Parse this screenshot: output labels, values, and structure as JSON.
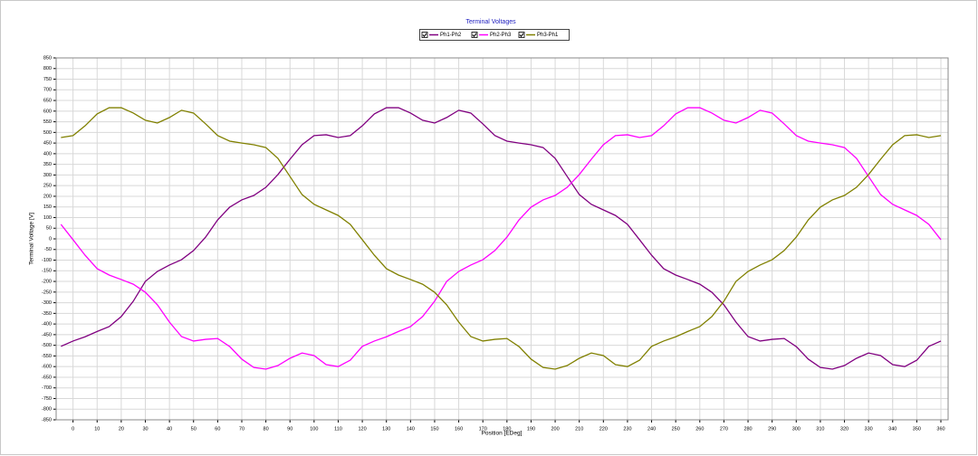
{
  "chart_data": {
    "type": "line",
    "title": "Terminal Voltages",
    "x_label": "Position [EDeg]",
    "y_label": "Terminal Voltage [V]",
    "x": [
      -5,
      0,
      5,
      10,
      15,
      20,
      25,
      30,
      35,
      40,
      45,
      50,
      55,
      60,
      65,
      70,
      75,
      80,
      85,
      90,
      95,
      100,
      105,
      110,
      115,
      120,
      125,
      130,
      135,
      140,
      145,
      150,
      155,
      160,
      165,
      170,
      175,
      180,
      185,
      190,
      195,
      200,
      205,
      210,
      215,
      220,
      225,
      230,
      235,
      240,
      245,
      250,
      255,
      260,
      265,
      270,
      275,
      280,
      285,
      290,
      295,
      300,
      305,
      310,
      315,
      320,
      325,
      330,
      335,
      340,
      345,
      350,
      355,
      360
    ],
    "series": [
      {
        "name": "Ph1-Ph2",
        "color": "#800080",
        "values": [
          -505,
          -480,
          -460,
          -435,
          -412,
          -365,
          -293,
          -200,
          -153,
          -123,
          -98,
          -55,
          8,
          89,
          149,
          183,
          204,
          242,
          302,
          374,
          442,
          485,
          489,
          476,
          485,
          531,
          587,
          616,
          616,
          591,
          557,
          544,
          570,
          604,
          591,
          540,
          485,
          459,
          450,
          442,
          429,
          378,
          293,
          208,
          162,
          136,
          110,
          68,
          -4,
          -77,
          -140,
          -170,
          -191,
          -213,
          -251,
          -310,
          -391,
          -459,
          -480,
          -472,
          -468,
          -506,
          -565,
          -604,
          -612,
          -595,
          -561,
          -536,
          -548,
          -591,
          -600,
          -570,
          -505,
          -480
        ]
      },
      {
        "name": "Ph2-Ph3",
        "color": "#ff00ff",
        "values": [
          68,
          -4,
          -77,
          -140,
          -170,
          -191,
          -213,
          -251,
          -310,
          -391,
          -459,
          -480,
          -472,
          -468,
          -506,
          -565,
          -604,
          -612,
          -595,
          -561,
          -536,
          -548,
          -591,
          -600,
          -570,
          -505,
          -480,
          -460,
          -435,
          -412,
          -365,
          -293,
          -200,
          -153,
          -123,
          -98,
          -55,
          8,
          89,
          149,
          183,
          204,
          242,
          302,
          374,
          442,
          485,
          489,
          476,
          485,
          531,
          587,
          616,
          616,
          591,
          557,
          544,
          570,
          604,
          591,
          540,
          485,
          459,
          450,
          442,
          429,
          378,
          293,
          208,
          162,
          136,
          110,
          68,
          -4
        ]
      },
      {
        "name": "Ph3-Ph1",
        "color": "#808000",
        "values": [
          476,
          485,
          531,
          587,
          616,
          616,
          591,
          557,
          544,
          570,
          604,
          591,
          540,
          485,
          459,
          450,
          442,
          429,
          378,
          293,
          208,
          162,
          136,
          110,
          68,
          -4,
          -77,
          -140,
          -170,
          -191,
          -213,
          -251,
          -310,
          -391,
          -459,
          -480,
          -472,
          -468,
          -506,
          -565,
          -604,
          -612,
          -595,
          -561,
          -536,
          -548,
          -591,
          -600,
          -570,
          -505,
          -480,
          -460,
          -435,
          -412,
          -365,
          -293,
          -200,
          -153,
          -123,
          -98,
          -55,
          8,
          89,
          149,
          183,
          204,
          242,
          302,
          374,
          442,
          485,
          489,
          476,
          485
        ]
      }
    ],
    "xlim": [
      -7,
      363
    ],
    "ylim": [
      -850,
      850
    ],
    "xticks": [
      0,
      10,
      20,
      30,
      40,
      50,
      60,
      70,
      80,
      90,
      100,
      110,
      120,
      130,
      140,
      150,
      160,
      170,
      180,
      190,
      200,
      210,
      220,
      230,
      240,
      250,
      260,
      270,
      280,
      290,
      300,
      310,
      320,
      330,
      340,
      350,
      360
    ],
    "yticks": [
      -850,
      -800,
      -750,
      -700,
      -650,
      -600,
      -550,
      -500,
      -450,
      -400,
      -350,
      -300,
      -250,
      -200,
      -150,
      -100,
      -50,
      0,
      50,
      100,
      150,
      200,
      250,
      300,
      350,
      400,
      450,
      500,
      550,
      600,
      650,
      700,
      750,
      800,
      850
    ],
    "grid": true
  }
}
